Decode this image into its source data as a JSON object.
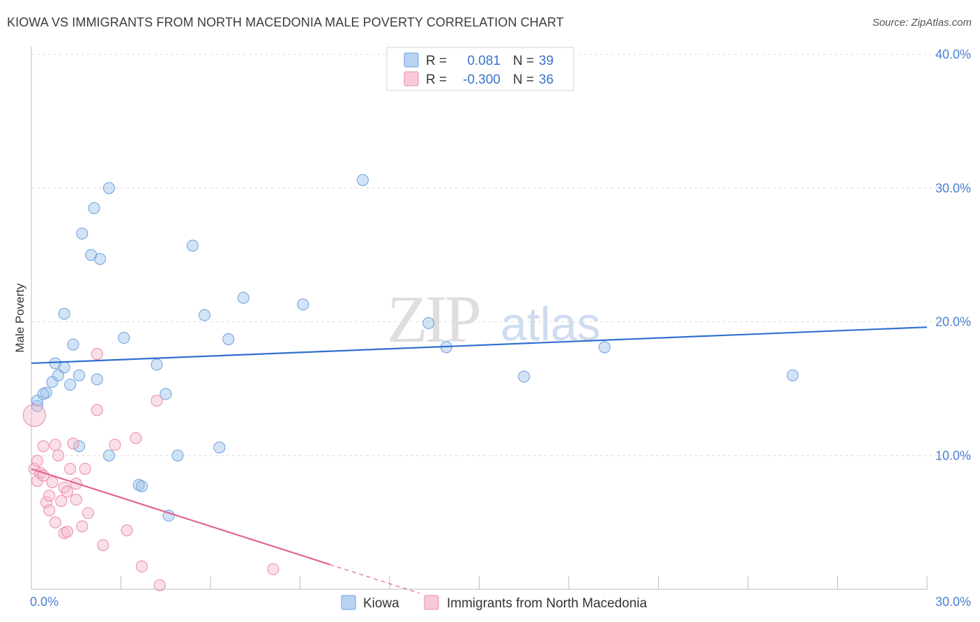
{
  "title": "KIOWA VS IMMIGRANTS FROM NORTH MACEDONIA MALE POVERTY CORRELATION CHART",
  "source": "Source: ZipAtlas.com",
  "watermark": {
    "zip": "ZIP",
    "atlas": "atlas"
  },
  "chart_data": {
    "type": "scatter",
    "xlabel": "",
    "ylabel": "Male Poverty",
    "xlim": [
      0,
      30
    ],
    "ylim": [
      0,
      40
    ],
    "x_tick_labels": [
      "0.0%",
      "30.0%"
    ],
    "y_ticks": [
      10,
      20,
      30,
      40
    ],
    "y_tick_labels": [
      "10.0%",
      "20.0%",
      "30.0%",
      "40.0%"
    ],
    "grid": true,
    "legend_top": [
      {
        "r_label": "R =",
        "r_value": "0.081",
        "n_label": "N =",
        "n_value": "39"
      },
      {
        "r_label": "R =",
        "r_value": "-0.300",
        "n_label": "N =",
        "n_value": "36"
      }
    ],
    "series": [
      {
        "name": "Kiowa",
        "color": "#9ec0ea",
        "stroke": "#6b9fdc",
        "line_color": "#2f6fcf",
        "trend": {
          "x0": 0,
          "y0": 16.9,
          "x1": 30,
          "y1": 19.6,
          "solid_until": 30
        },
        "points": [
          [
            0.2,
            13.7
          ],
          [
            0.2,
            14.1
          ],
          [
            0.5,
            14.7
          ],
          [
            0.4,
            14.6
          ],
          [
            0.7,
            15.5
          ],
          [
            0.9,
            16.0
          ],
          [
            0.8,
            16.9
          ],
          [
            1.1,
            16.6
          ],
          [
            1.3,
            15.3
          ],
          [
            1.1,
            20.6
          ],
          [
            1.4,
            18.3
          ],
          [
            1.6,
            10.7
          ],
          [
            1.6,
            16.0
          ],
          [
            1.7,
            26.6
          ],
          [
            2.0,
            25.0
          ],
          [
            2.1,
            28.5
          ],
          [
            2.2,
            15.7
          ],
          [
            2.3,
            24.7
          ],
          [
            2.6,
            10.0
          ],
          [
            2.6,
            30.0
          ],
          [
            3.1,
            18.8
          ],
          [
            3.6,
            7.8
          ],
          [
            3.7,
            7.7
          ],
          [
            4.2,
            16.8
          ],
          [
            4.5,
            14.6
          ],
          [
            4.6,
            5.5
          ],
          [
            4.9,
            10.0
          ],
          [
            5.4,
            25.7
          ],
          [
            5.8,
            20.5
          ],
          [
            6.3,
            10.6
          ],
          [
            6.6,
            18.7
          ],
          [
            7.1,
            21.8
          ],
          [
            9.1,
            21.3
          ],
          [
            11.1,
            30.6
          ],
          [
            13.3,
            19.9
          ],
          [
            13.9,
            18.1
          ],
          [
            16.5,
            15.9
          ],
          [
            19.2,
            18.1
          ],
          [
            25.5,
            16.0
          ]
        ]
      },
      {
        "name": "Immigrants from North Macedonia",
        "color": "#f5b8cb",
        "stroke": "#e88aa8",
        "line_color": "#e0648f",
        "trend": {
          "x0": 0,
          "y0": 9.0,
          "x1": 13.0,
          "y1": -0.3,
          "solid_until": 10.0
        },
        "points": [
          [
            0.1,
            13.0
          ],
          [
            0.1,
            9.0
          ],
          [
            0.2,
            9.6
          ],
          [
            0.2,
            8.1
          ],
          [
            0.3,
            8.7
          ],
          [
            0.4,
            8.5
          ],
          [
            0.4,
            10.7
          ],
          [
            0.5,
            6.5
          ],
          [
            0.6,
            5.9
          ],
          [
            0.6,
            7.0
          ],
          [
            0.7,
            8.0
          ],
          [
            0.8,
            10.8
          ],
          [
            0.8,
            5.0
          ],
          [
            0.9,
            10.0
          ],
          [
            1.0,
            6.6
          ],
          [
            1.1,
            4.2
          ],
          [
            1.1,
            7.6
          ],
          [
            1.2,
            7.3
          ],
          [
            1.2,
            4.3
          ],
          [
            1.3,
            9.0
          ],
          [
            1.4,
            10.9
          ],
          [
            1.5,
            7.9
          ],
          [
            1.5,
            6.7
          ],
          [
            1.7,
            4.7
          ],
          [
            1.8,
            9.0
          ],
          [
            1.9,
            5.7
          ],
          [
            2.2,
            13.4
          ],
          [
            2.2,
            17.6
          ],
          [
            2.4,
            3.3
          ],
          [
            2.8,
            10.8
          ],
          [
            3.2,
            4.4
          ],
          [
            3.5,
            11.3
          ],
          [
            3.7,
            1.7
          ],
          [
            4.2,
            14.1
          ],
          [
            4.3,
            0.3
          ],
          [
            8.1,
            1.5
          ]
        ]
      }
    ]
  }
}
